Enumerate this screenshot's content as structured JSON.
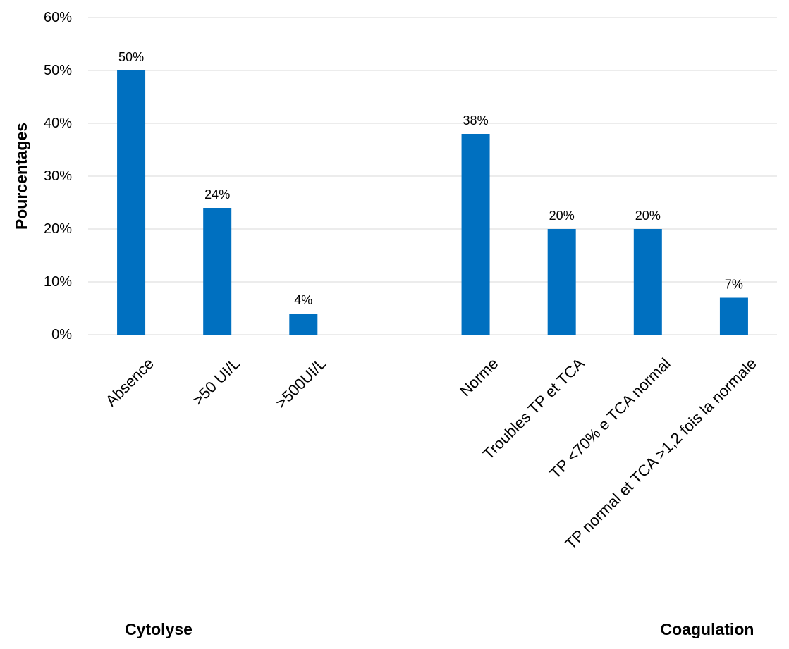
{
  "chart_data": {
    "type": "bar",
    "ylabel": "Pourcentages",
    "ylim": [
      0,
      60
    ],
    "yticks": [
      "0%",
      "10%",
      "20%",
      "30%",
      "40%",
      "50%",
      "60%"
    ],
    "grid": true,
    "bar_color": "#0070C0",
    "categories": [
      "Absence",
      ">50 UI/L",
      ">500UI/L",
      "",
      "Norme",
      "Troubles TP et TCA",
      "TP <70% e TCA normal",
      "TP normal et  TCA >1,2 fois la normale"
    ],
    "values": [
      50,
      24,
      4,
      null,
      38,
      20,
      20,
      7
    ],
    "data_labels": [
      "50%",
      "24%",
      "4%",
      "",
      "38%",
      "20%",
      "20%",
      "7%"
    ],
    "groups": [
      {
        "name": "Cytolyse",
        "categories": [
          "Absence",
          ">50 UI/L",
          ">500UI/L"
        ]
      },
      {
        "name": "Coagulation",
        "categories": [
          "Norme",
          "Troubles TP et TCA",
          "TP <70% e TCA normal",
          "TP normal et  TCA >1,2 fois la normale"
        ]
      }
    ]
  }
}
